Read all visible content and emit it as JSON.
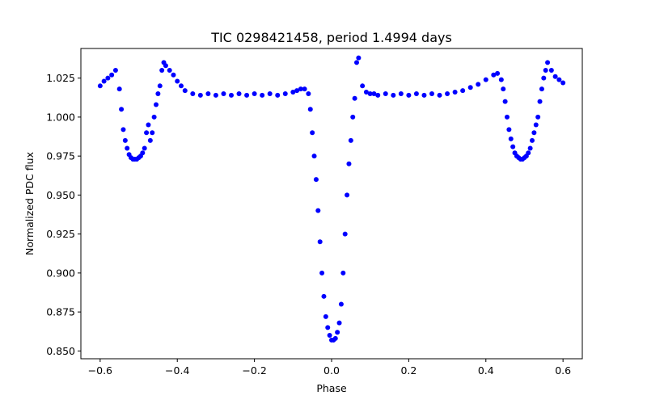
{
  "chart_data": {
    "type": "scatter",
    "title": "TIC 0298421458, period 1.4994 days",
    "xlabel": "Phase",
    "ylabel": "Normalized PDC flux",
    "xlim": [
      -0.65,
      0.65
    ],
    "ylim": [
      0.845,
      1.044
    ],
    "xticks": [
      -0.6,
      -0.4,
      -0.2,
      0.0,
      0.2,
      0.4,
      0.6
    ],
    "xtick_labels": [
      "−0.6",
      "−0.4",
      "−0.2",
      "0.0",
      "0.2",
      "0.4",
      "0.6"
    ],
    "yticks": [
      0.85,
      0.875,
      0.9,
      0.925,
      0.95,
      0.975,
      1.0,
      1.025
    ],
    "ytick_labels": [
      "0.850",
      "0.875",
      "0.900",
      "0.925",
      "0.950",
      "0.975",
      "1.000",
      "1.025"
    ],
    "grid": false,
    "marker_color": "#0000ff",
    "series": [
      {
        "x": [
          -0.6,
          -0.59,
          -0.58,
          -0.57,
          -0.56,
          -0.55,
          -0.545,
          -0.54,
          -0.535,
          -0.53,
          -0.525,
          -0.52,
          -0.515,
          -0.51,
          -0.505,
          -0.5,
          -0.495,
          -0.49,
          -0.485,
          -0.48,
          -0.475,
          -0.47,
          -0.465,
          -0.46,
          -0.455,
          -0.45,
          -0.445,
          -0.44,
          -0.435,
          -0.43,
          -0.42,
          -0.41,
          -0.4,
          -0.39,
          -0.38,
          -0.36,
          -0.34,
          -0.32,
          -0.3,
          -0.28,
          -0.26,
          -0.24,
          -0.22,
          -0.2,
          -0.18,
          -0.16,
          -0.14,
          -0.12,
          -0.1,
          -0.09,
          -0.08,
          -0.07,
          -0.06,
          -0.055,
          -0.05,
          -0.045,
          -0.04,
          -0.035,
          -0.03,
          -0.025,
          -0.02,
          -0.015,
          -0.01,
          -0.005,
          0.0,
          0.005,
          0.01,
          0.015,
          0.02,
          0.025,
          0.03,
          0.035,
          0.04,
          0.045,
          0.05,
          0.055,
          0.06,
          0.065,
          0.07,
          0.08,
          0.09,
          0.1,
          0.11,
          0.12,
          0.14,
          0.16,
          0.18,
          0.2,
          0.22,
          0.24,
          0.26,
          0.28,
          0.3,
          0.32,
          0.34,
          0.36,
          0.38,
          0.4,
          0.42,
          0.43,
          0.44,
          0.445,
          0.45,
          0.455,
          0.46,
          0.465,
          0.47,
          0.475,
          0.48,
          0.485,
          0.49,
          0.495,
          0.5,
          0.505,
          0.51,
          0.515,
          0.52,
          0.525,
          0.53,
          0.535,
          0.54,
          0.545,
          0.55,
          0.555,
          0.56,
          0.57,
          0.58,
          0.59,
          0.6
        ],
        "y": [
          1.02,
          1.023,
          1.025,
          1.027,
          1.03,
          1.018,
          1.005,
          0.992,
          0.985,
          0.98,
          0.976,
          0.974,
          0.973,
          0.973,
          0.973,
          0.974,
          0.975,
          0.977,
          0.98,
          0.99,
          0.995,
          0.985,
          0.99,
          1.0,
          1.008,
          1.015,
          1.02,
          1.03,
          1.035,
          1.033,
          1.03,
          1.027,
          1.023,
          1.02,
          1.017,
          1.015,
          1.014,
          1.015,
          1.014,
          1.015,
          1.014,
          1.015,
          1.014,
          1.015,
          1.014,
          1.015,
          1.014,
          1.015,
          1.016,
          1.017,
          1.018,
          1.018,
          1.015,
          1.005,
          0.99,
          0.975,
          0.96,
          0.94,
          0.92,
          0.9,
          0.885,
          0.872,
          0.865,
          0.86,
          0.857,
          0.857,
          0.858,
          0.862,
          0.868,
          0.88,
          0.9,
          0.925,
          0.95,
          0.97,
          0.985,
          1.0,
          1.012,
          1.035,
          1.038,
          1.02,
          1.016,
          1.015,
          1.015,
          1.014,
          1.015,
          1.014,
          1.015,
          1.014,
          1.015,
          1.014,
          1.015,
          1.014,
          1.015,
          1.016,
          1.017,
          1.019,
          1.021,
          1.024,
          1.027,
          1.028,
          1.024,
          1.018,
          1.01,
          1.0,
          0.992,
          0.986,
          0.981,
          0.977,
          0.975,
          0.974,
          0.973,
          0.973,
          0.974,
          0.975,
          0.977,
          0.98,
          0.985,
          0.99,
          0.995,
          1.0,
          1.01,
          1.018,
          1.025,
          1.03,
          1.035,
          1.03,
          1.026,
          1.024,
          1.022
        ]
      }
    ]
  }
}
